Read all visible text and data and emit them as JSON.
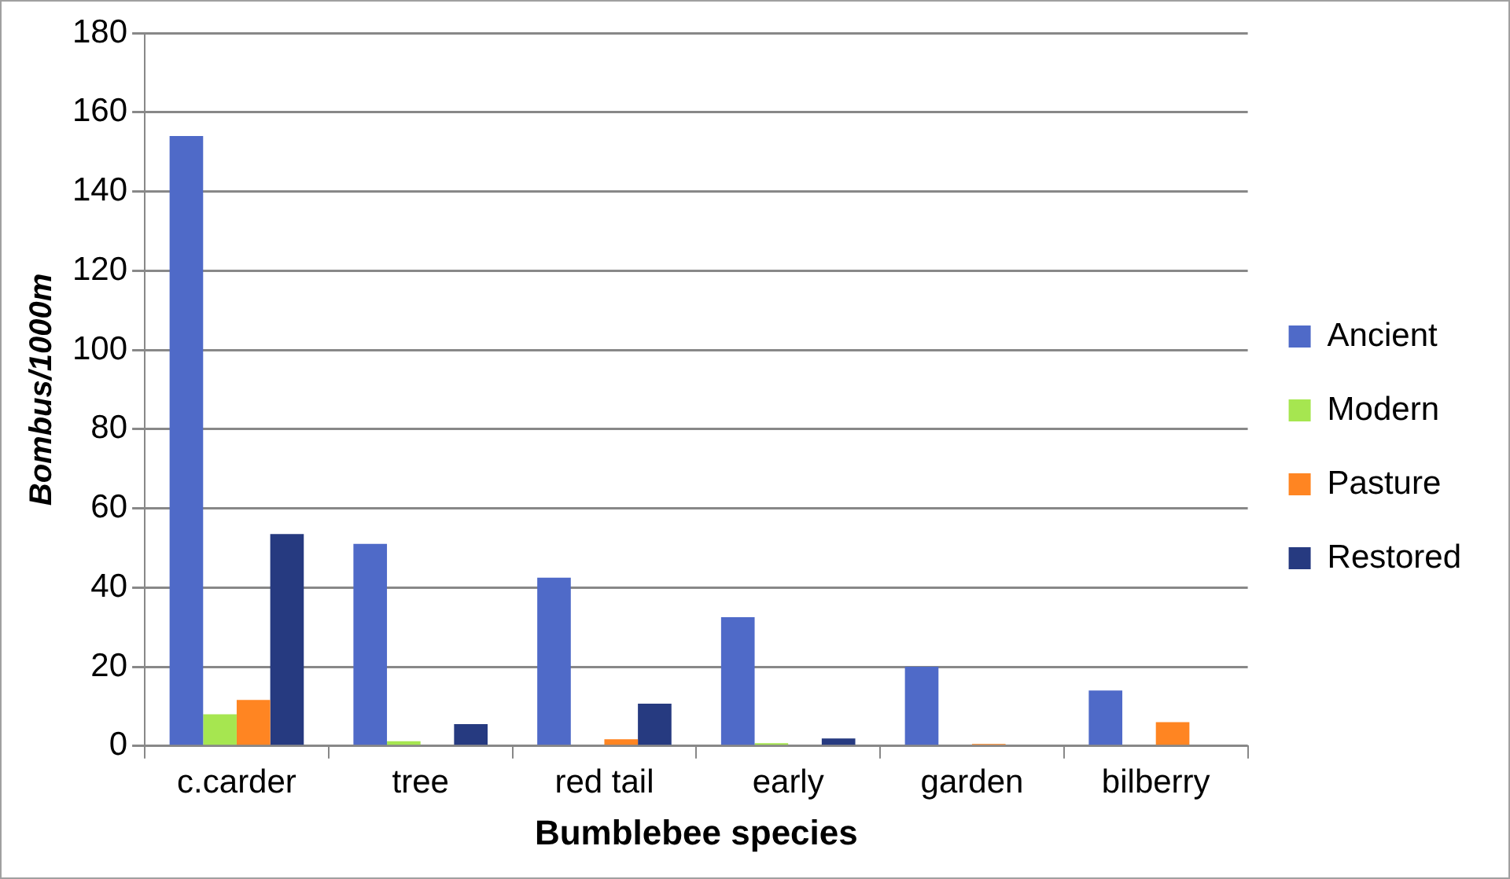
{
  "chart_data": {
    "type": "bar",
    "xlabel": "Bumblebee species",
    "ylabel": "Bombus/1000m",
    "categories": [
      "c.carder",
      "tree",
      "red tail",
      "early",
      "garden",
      "bilberry"
    ],
    "series": [
      {
        "name": "Ancient",
        "color": "#4f6ac8",
        "values": [
          154,
          51,
          42.5,
          32.5,
          20,
          14
        ]
      },
      {
        "name": "Modern",
        "color": "#a6e650",
        "values": [
          8,
          1.2,
          0,
          0.7,
          0,
          0
        ]
      },
      {
        "name": "Pasture",
        "color": "#ff8522",
        "values": [
          11.6,
          0,
          1.7,
          0,
          0.5,
          6
        ]
      },
      {
        "name": "Restored",
        "color": "#263a80",
        "values": [
          53.5,
          5.5,
          10.7,
          1.9,
          0,
          0
        ]
      }
    ],
    "ylim": [
      0,
      180
    ],
    "yticks": [
      0,
      20,
      40,
      60,
      80,
      100,
      120,
      140,
      160,
      180
    ],
    "grid": "y",
    "legend": "right"
  }
}
